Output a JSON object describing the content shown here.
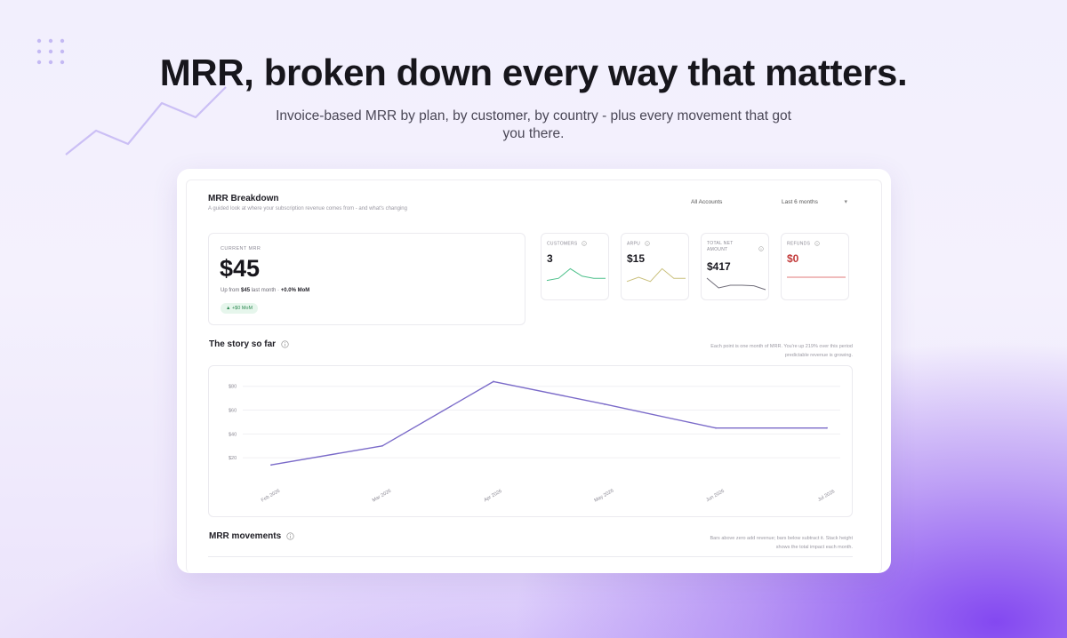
{
  "hero": {
    "headline": "MRR, broken down every way that matters.",
    "subline": "Invoice-based MRR by plan, by customer, by country -  plus every movement that got you there."
  },
  "dashboard": {
    "title": "MRR Breakdown",
    "subtitle": "A guided look at where your subscription revenue comes from - and what's changing",
    "account_filter": "All Accounts",
    "period_filter": "Last 6 months",
    "current_mrr": {
      "label": "CURRENT MRR",
      "value": "$45",
      "sub_prefix": "Up from",
      "sub_amount": "$45",
      "sub_suffix": "last month ·",
      "sub_change": "+0.0% MoM",
      "badge": "▲ +$0 MoM"
    },
    "kpis": [
      {
        "label": "CUSTOMERS",
        "value": "3",
        "color": "#4cc08a",
        "trend": [
          0.35,
          0.45,
          0.9,
          0.55,
          0.45,
          0.45
        ]
      },
      {
        "label": "ARPU",
        "value": "$15",
        "color": "#c9bf7a",
        "trend": [
          0.3,
          0.5,
          0.3,
          0.9,
          0.45,
          0.45
        ]
      },
      {
        "label": "TOTAL NET AMOUNT",
        "value": "$417",
        "color": "#6f6c78",
        "trend": [
          0.85,
          0.3,
          0.45,
          0.45,
          0.42,
          0.2
        ]
      },
      {
        "label": "REFUNDS",
        "value": "$0",
        "color": "#e07a7a",
        "trend": [
          0.5,
          0.5,
          0.5,
          0.5,
          0.5,
          0.5
        ]
      }
    ],
    "story": {
      "title": "The story so far",
      "note_line1": "Each point is one month of MRR. You're up 219% over this period",
      "note_line2": "predictable revenue is growing."
    },
    "movements": {
      "title": "MRR movements",
      "note_line1": "Bars above zero add revenue; bars below subtract it. Stack height",
      "note_line2": "shows the total impact each month."
    },
    "colors": {
      "line": "#7b6bc9",
      "accent": "#8b5cf6"
    }
  },
  "chart_data": {
    "type": "line",
    "title": "The story so far",
    "x": [
      "Feb 2026",
      "Mar 2026",
      "Apr 2026",
      "May 2026",
      "Jun 2026",
      "Jul 2026"
    ],
    "y_ticks": [
      "$20",
      "$40",
      "$60",
      "$80"
    ],
    "ylim": [
      0,
      88
    ],
    "series": [
      {
        "values": [
          14,
          30,
          84,
          65,
          45,
          45
        ]
      }
    ],
    "grid": true,
    "xlabel": "",
    "ylabel": ""
  }
}
